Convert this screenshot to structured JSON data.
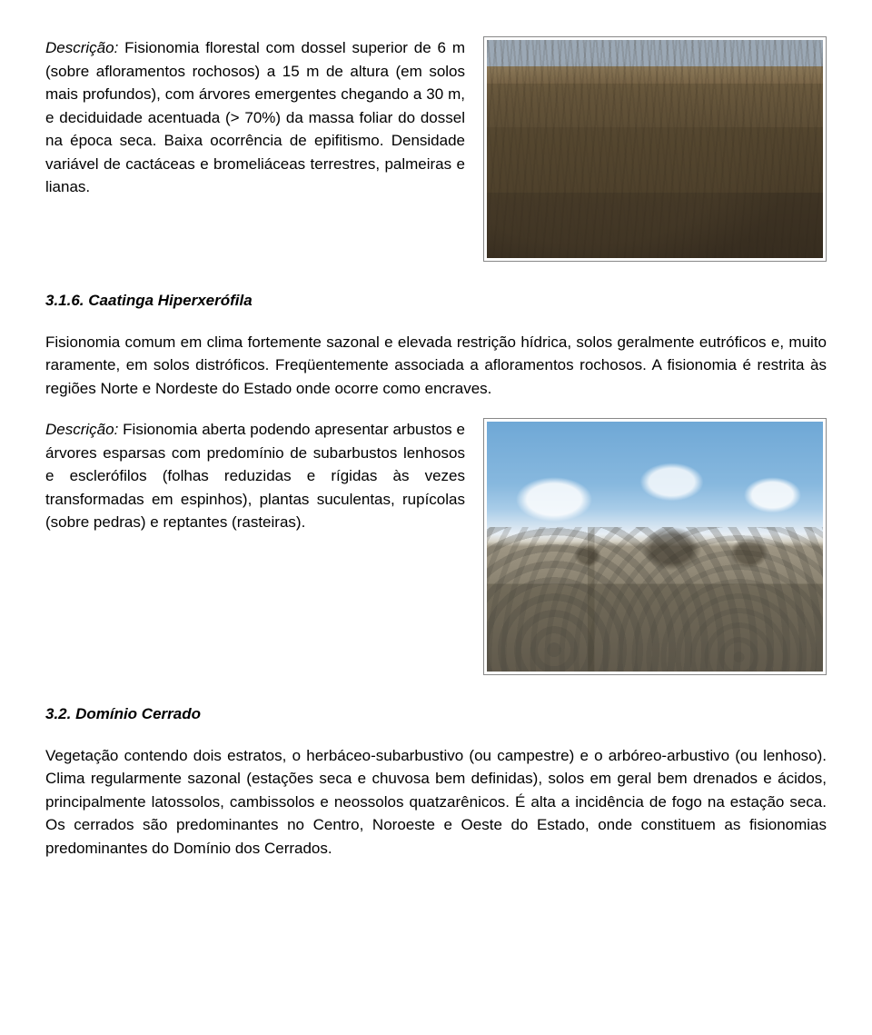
{
  "section1": {
    "desc_label": "Descrição:",
    "desc_text": " Fisionomia florestal com dossel superior de 6 m (sobre afloramentos rochosos) a 15 m de altura (em solos mais profundos), com árvores emergentes chegando a 30 m, e deciduidade acentuada (> 70%) da massa foliar do dossel na época seca. Baixa ocorrência de epifitismo. Densidade variável de cactáceas e bromeliáceas terrestres, palmeiras e lianas."
  },
  "section2": {
    "heading": "3.1.6. Caatinga Hiperxerófila",
    "para": "Fisionomia comum em clima fortemente sazonal e elevada restrição hídrica, solos geralmente eutróficos e, muito raramente, em solos distróficos. Freqüentemente associada a afloramentos rochosos. A fisionomia é restrita às regiões Norte e Nordeste do Estado onde ocorre como encraves.",
    "desc_label": "Descrição:",
    "desc_text": " Fisionomia aberta podendo apresentar arbustos e árvores esparsas com predomínio de subarbustos lenhosos e esclerófilos (folhas reduzidas e rígidas às vezes transformadas em espinhos), plantas suculentas, rupícolas (sobre pedras) e reptantes (rasteiras)."
  },
  "section3": {
    "heading": "3.2. Domínio Cerrado",
    "para": "Vegetação contendo dois estratos, o herbáceo-subarbustivo (ou campestre) e o arbóreo-arbustivo (ou lenhoso). Clima regularmente sazonal (estações seca e chuvosa bem definidas), solos em geral bem drenados e ácidos, principalmente latossolos, cambissolos e neossolos quatzarênicos. É alta a incidência de fogo na estação seca. Os cerrados são predominantes no Centro, Noroeste e Oeste do Estado, onde constituem as fisionomias predominantes do Domínio dos Cerrados."
  }
}
